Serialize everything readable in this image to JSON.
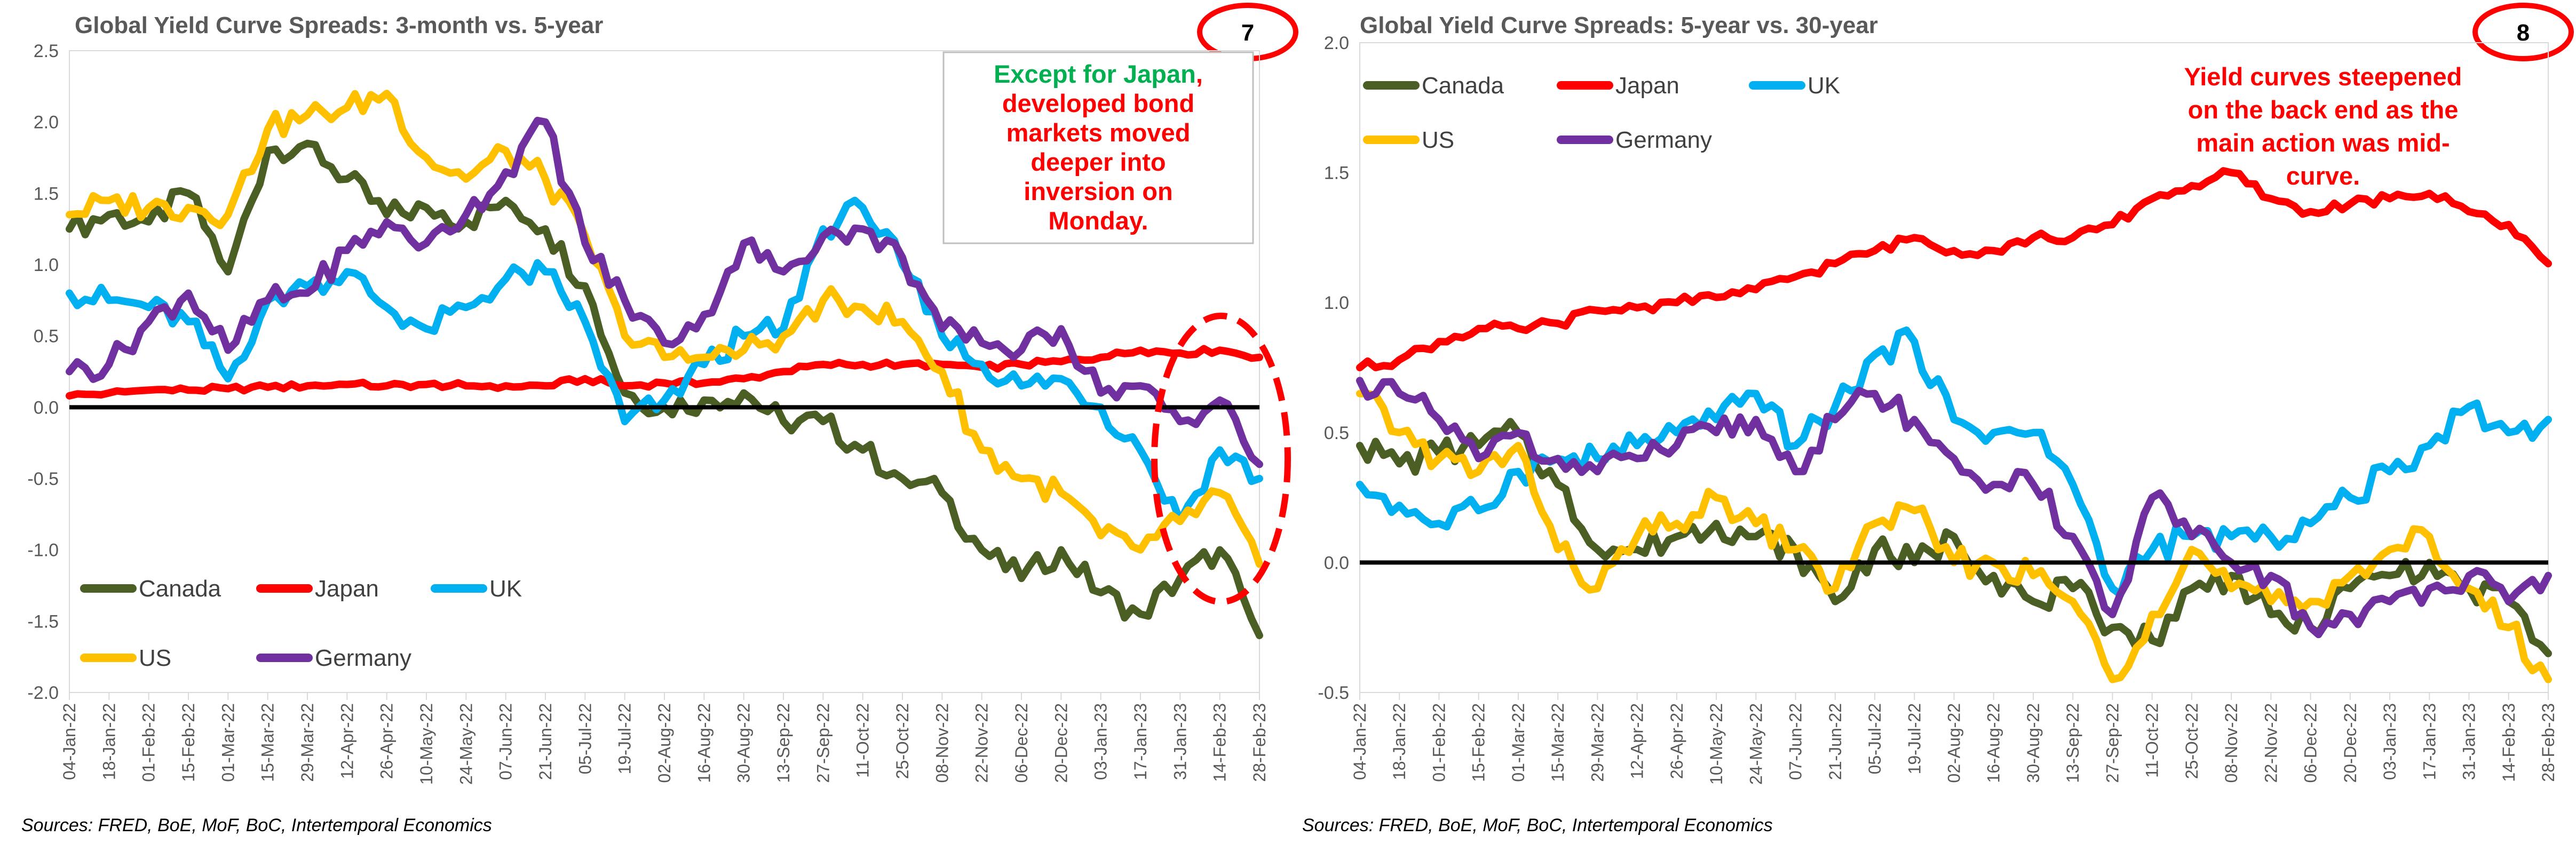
{
  "dates": [
    "04-Jan-22",
    "18-Jan-22",
    "01-Feb-22",
    "15-Feb-22",
    "01-Mar-22",
    "15-Mar-22",
    "29-Mar-22",
    "12-Apr-22",
    "26-Apr-22",
    "10-May-22",
    "24-May-22",
    "07-Jun-22",
    "21-Jun-22",
    "05-Jul-22",
    "19-Jul-22",
    "02-Aug-22",
    "16-Aug-22",
    "30-Aug-22",
    "13-Sep-22",
    "27-Sep-22",
    "11-Oct-22",
    "25-Oct-22",
    "08-Nov-22",
    "22-Nov-22",
    "06-Dec-22",
    "20-Dec-22",
    "03-Jan-23",
    "17-Jan-23",
    "31-Jan-23",
    "14-Feb-23",
    "28-Feb-23"
  ],
  "panels": [
    {
      "title": "Global Yield Curve Spreads: 3-month vs. 5-year",
      "badge": "7",
      "source": "Sources: FRED, BoE, MoF, BoC, Intertemporal Economics",
      "annotation": {
        "green": "Except for Japan",
        "red_lines": [
          ",",
          "developed bond",
          "markets moved",
          "deeper into",
          "inversion on",
          "Monday."
        ]
      },
      "chart_data": {
        "type": "line",
        "title": "Global Yield Curve Spreads: 3-month vs. 5-year",
        "ylim": [
          -2.0,
          2.5
        ],
        "yticks": [
          "2.5",
          "2.0",
          "1.5",
          "1.0",
          "0.5",
          "0.0",
          "-0.5",
          "-1.0",
          "-1.5",
          "-2.0"
        ],
        "xticks": [
          "04-Jan-22",
          "18-Jan-22",
          "01-Feb-22",
          "15-Feb-22",
          "01-Mar-22",
          "15-Mar-22",
          "29-Mar-22",
          "12-Apr-22",
          "26-Apr-22",
          "10-May-22",
          "24-May-22",
          "07-Jun-22",
          "21-Jun-22",
          "05-Jul-22",
          "19-Jul-22",
          "02-Aug-22",
          "16-Aug-22",
          "30-Aug-22",
          "13-Sep-22",
          "27-Sep-22",
          "11-Oct-22",
          "25-Oct-22",
          "08-Nov-22",
          "22-Nov-22",
          "06-Dec-22",
          "20-Dec-22",
          "03-Jan-23",
          "17-Jan-23",
          "31-Jan-23",
          "14-Feb-23",
          "28-Feb-23"
        ],
        "grid": false,
        "legend_position": "bottom-left",
        "series": [
          {
            "name": "Canada",
            "color": "#4b5e24",
            "values": [
              1.25,
              1.35,
              1.3,
              1.5,
              0.95,
              1.8,
              1.85,
              1.6,
              1.35,
              1.4,
              1.3,
              1.45,
              1.25,
              0.85,
              0.1,
              0.0,
              0.05,
              0.1,
              -0.1,
              -0.1,
              -0.3,
              -0.5,
              -0.6,
              -1.0,
              -1.2,
              -1.0,
              -1.3,
              -1.45,
              -1.2,
              -1.0,
              -1.6
            ]
          },
          {
            "name": "Japan",
            "color": "#ff0000",
            "values": [
              0.08,
              0.1,
              0.12,
              0.12,
              0.13,
              0.14,
              0.15,
              0.16,
              0.15,
              0.16,
              0.15,
              0.15,
              0.15,
              0.2,
              0.15,
              0.17,
              0.17,
              0.2,
              0.25,
              0.3,
              0.3,
              0.3,
              0.3,
              0.28,
              0.3,
              0.32,
              0.35,
              0.4,
              0.38,
              0.4,
              0.35
            ]
          },
          {
            "name": "UK",
            "color": "#00b0f0",
            "values": [
              0.8,
              0.75,
              0.7,
              0.6,
              0.2,
              0.75,
              0.85,
              0.95,
              0.7,
              0.55,
              0.7,
              0.9,
              0.95,
              0.6,
              -0.1,
              0.05,
              0.3,
              0.5,
              0.55,
              1.25,
              1.4,
              1.0,
              0.5,
              0.3,
              0.15,
              0.2,
              0.0,
              -0.3,
              -0.8,
              -0.3,
              -0.5
            ]
          },
          {
            "name": "US",
            "color": "#ffc000",
            "values": [
              1.35,
              1.45,
              1.4,
              1.4,
              1.35,
              1.95,
              2.05,
              2.1,
              2.2,
              1.75,
              1.6,
              1.8,
              1.6,
              1.2,
              0.5,
              0.35,
              0.35,
              0.4,
              0.5,
              0.75,
              0.7,
              0.6,
              0.25,
              -0.3,
              -0.5,
              -0.6,
              -0.9,
              -1.0,
              -0.8,
              -0.6,
              -1.1
            ]
          },
          {
            "name": "Germany",
            "color": "#7030a0",
            "values": [
              0.25,
              0.3,
              0.6,
              0.8,
              0.4,
              0.75,
              0.8,
              1.1,
              1.3,
              1.15,
              1.35,
              1.65,
              2.0,
              1.15,
              0.75,
              0.45,
              0.65,
              1.15,
              0.95,
              1.2,
              1.25,
              1.05,
              0.55,
              0.45,
              0.4,
              0.55,
              0.1,
              0.15,
              -0.1,
              0.05,
              -0.4
            ]
          }
        ]
      }
    },
    {
      "title": "Global Yield Curve Spreads: 5-year vs. 30-year",
      "badge": "8",
      "source": "Sources: FRED, BoE, MoF, BoC, Intertemporal Economics",
      "annotation": {
        "red_lines": [
          "Yield curves steepened",
          "on the back end as the",
          "main action was mid-",
          "curve."
        ]
      },
      "chart_data": {
        "type": "line",
        "title": "Global Yield Curve Spreads: 5-year vs. 30-year",
        "ylim": [
          -0.5,
          2.0
        ],
        "yticks": [
          "2.0",
          "1.5",
          "1.0",
          "0.5",
          "0.0",
          "-0.5"
        ],
        "xticks": [
          "04-Jan-22",
          "18-Jan-22",
          "01-Feb-22",
          "15-Feb-22",
          "01-Mar-22",
          "15-Mar-22",
          "29-Mar-22",
          "12-Apr-22",
          "26-Apr-22",
          "10-May-22",
          "24-May-22",
          "07-Jun-22",
          "21-Jun-22",
          "05-Jul-22",
          "19-Jul-22",
          "02-Aug-22",
          "16-Aug-22",
          "30-Aug-22",
          "13-Sep-22",
          "27-Sep-22",
          "11-Oct-22",
          "25-Oct-22",
          "08-Nov-22",
          "22-Nov-22",
          "06-Dec-22",
          "20-Dec-22",
          "03-Jan-23",
          "17-Jan-23",
          "31-Jan-23",
          "14-Feb-23",
          "28-Feb-23"
        ],
        "grid": false,
        "legend_position": "top-left",
        "series": [
          {
            "name": "Canada",
            "color": "#4b5e24",
            "values": [
              0.45,
              0.38,
              0.42,
              0.45,
              0.5,
              0.3,
              0.05,
              0.05,
              0.1,
              0.15,
              0.1,
              0.05,
              -0.15,
              0.05,
              0.0,
              0.1,
              -0.05,
              -0.15,
              -0.1,
              -0.25,
              -0.3,
              -0.1,
              -0.05,
              -0.2,
              -0.25,
              -0.1,
              -0.05,
              0.0,
              -0.1,
              -0.15,
              -0.35
            ]
          },
          {
            "name": "Japan",
            "color": "#ff0000",
            "values": [
              0.75,
              0.78,
              0.85,
              0.9,
              0.9,
              0.92,
              0.97,
              0.98,
              1.0,
              1.02,
              1.05,
              1.1,
              1.15,
              1.2,
              1.25,
              1.2,
              1.2,
              1.25,
              1.25,
              1.3,
              1.4,
              1.45,
              1.5,
              1.4,
              1.35,
              1.38,
              1.4,
              1.42,
              1.35,
              1.3,
              1.15
            ]
          },
          {
            "name": "UK",
            "color": "#00b0f0",
            "values": [
              0.3,
              0.22,
              0.15,
              0.2,
              0.35,
              0.4,
              0.4,
              0.45,
              0.5,
              0.55,
              0.65,
              0.45,
              0.6,
              0.8,
              0.85,
              0.55,
              0.5,
              0.5,
              0.3,
              -0.1,
              0.05,
              0.1,
              0.1,
              0.1,
              0.15,
              0.25,
              0.35,
              0.45,
              0.6,
              0.5,
              0.55
            ]
          },
          {
            "name": "US",
            "color": "#ffc000",
            "values": [
              0.65,
              0.5,
              0.4,
              0.35,
              0.45,
              0.05,
              -0.1,
              0.1,
              0.15,
              0.25,
              0.15,
              0.05,
              -0.1,
              0.15,
              0.2,
              0.0,
              0.0,
              -0.05,
              -0.15,
              -0.45,
              -0.2,
              0.05,
              -0.1,
              -0.15,
              -0.15,
              -0.05,
              0.05,
              0.1,
              -0.1,
              -0.25,
              -0.45
            ]
          },
          {
            "name": "Germany",
            "color": "#7030a0",
            "values": [
              0.7,
              0.65,
              0.55,
              0.4,
              0.5,
              0.4,
              0.35,
              0.4,
              0.45,
              0.5,
              0.55,
              0.35,
              0.55,
              0.65,
              0.55,
              0.4,
              0.3,
              0.3,
              0.1,
              -0.2,
              0.25,
              0.1,
              0.0,
              -0.05,
              -0.25,
              -0.2,
              -0.15,
              -0.1,
              -0.05,
              -0.15,
              -0.05
            ]
          }
        ]
      }
    }
  ]
}
